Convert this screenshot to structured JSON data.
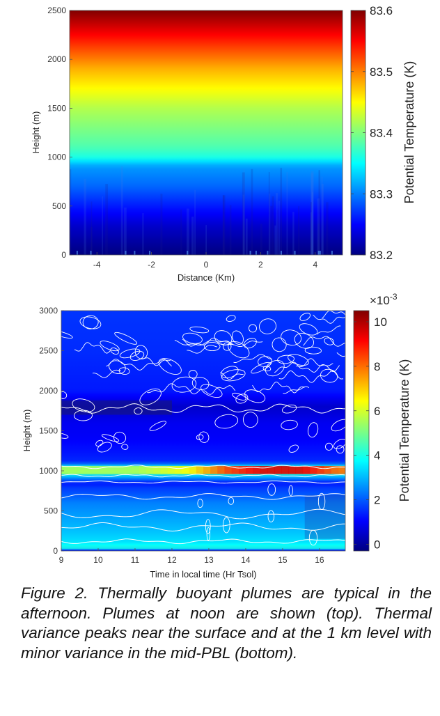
{
  "chart_data": [
    {
      "type": "heatmap",
      "panel": "top",
      "xlabel": "Distance (Km)",
      "ylabel": "Height (m)",
      "xlim": [
        -5,
        5
      ],
      "ylim": [
        0,
        2500
      ],
      "xticks": [
        -4,
        -2,
        0,
        2,
        4
      ],
      "yticks": [
        0,
        500,
        1000,
        1500,
        2000,
        2500
      ],
      "colorbar": {
        "label": "Potential Temperature (K)",
        "range": [
          83.2,
          83.6
        ],
        "ticks": [
          "83.2",
          "83.3",
          "83.4",
          "83.5",
          "83.6"
        ],
        "colormap": "jet"
      },
      "profile": {
        "height_m": [
          0,
          100,
          300,
          500,
          700,
          900,
          1000,
          1100,
          1300,
          1500,
          1700,
          1900,
          2100,
          2300,
          2500
        ],
        "theta_K": [
          83.2,
          83.21,
          83.23,
          83.26,
          83.29,
          83.31,
          83.36,
          83.38,
          83.4,
          83.42,
          83.45,
          83.48,
          83.52,
          83.56,
          83.6
        ]
      }
    },
    {
      "type": "heatmap",
      "panel": "bottom",
      "xlabel": "Time in local time (Hr Tsol)",
      "ylabel": "Height (m)",
      "xlim": [
        9,
        16.7
      ],
      "ylim": [
        0,
        3000
      ],
      "xticks": [
        9,
        10,
        11,
        12,
        13,
        14,
        15,
        16
      ],
      "yticks": [
        0,
        500,
        1000,
        1500,
        2000,
        2500,
        3000
      ],
      "colorbar": {
        "label": "Potential Temperature (K)",
        "multiplier": "×10",
        "multiplier_exp": "-3",
        "range": [
          -0.0003,
          0.0105
        ],
        "ticks": [
          "0",
          "2",
          "4",
          "6",
          "8",
          "10"
        ],
        "colormap": "jet"
      },
      "variance_profile": {
        "height_m": [
          0,
          50,
          100,
          200,
          300,
          400,
          500,
          600,
          700,
          800,
          850,
          950,
          1000,
          1050,
          1100,
          1200,
          1400,
          1600,
          1800,
          2000,
          2500,
          3000
        ],
        "variance_x1e3": [
          1.0,
          4.0,
          3.5,
          3.2,
          3.0,
          2.8,
          2.6,
          2.4,
          2.0,
          1.6,
          1.2,
          3.5,
          5.5,
          4.0,
          1.5,
          1.3,
          1.0,
          0.9,
          0.5,
          1.3,
          1.5,
          1.6
        ]
      },
      "peak_1km": {
        "time_hr": [
          9,
          11,
          12.5,
          13.5,
          14.5,
          15.5,
          16.5
        ],
        "variance_x1e3": [
          5.5,
          5.5,
          6.5,
          8.5,
          9.5,
          9.5,
          8.0
        ]
      }
    }
  ],
  "caption": "Figure 2.  Thermally buoyant plumes are typical in the afternoon.   Plumes at noon are shown (top).  Thermal variance peaks near the surface and at the 1 km level with minor variance in the mid-PBL (bottom)."
}
